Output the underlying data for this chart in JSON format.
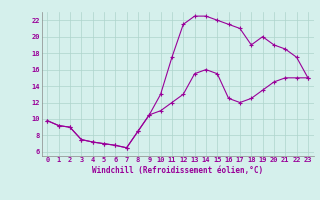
{
  "xlabel": "Windchill (Refroidissement éolien,°C)",
  "background_color": "#d5f0ec",
  "grid_color": "#aed4cc",
  "line_color": "#990099",
  "xlim": [
    -0.5,
    23.5
  ],
  "ylim": [
    5.5,
    23
  ],
  "xticks": [
    0,
    1,
    2,
    3,
    4,
    5,
    6,
    7,
    8,
    9,
    10,
    11,
    12,
    13,
    14,
    15,
    16,
    17,
    18,
    19,
    20,
    21,
    22,
    23
  ],
  "yticks": [
    6,
    8,
    10,
    12,
    14,
    16,
    18,
    20,
    22
  ],
  "line1_x": [
    0,
    1,
    2,
    3,
    4,
    5,
    6,
    7,
    8,
    9,
    10,
    11,
    12,
    13,
    14,
    15,
    16,
    17,
    18,
    19,
    20,
    21,
    22,
    23
  ],
  "line1_y": [
    9.8,
    9.2,
    9.0,
    7.5,
    7.2,
    7.0,
    6.8,
    6.5,
    8.5,
    10.5,
    13.0,
    17.5,
    21.5,
    22.5,
    22.5,
    22.0,
    21.5,
    21.0,
    19.0,
    20.0,
    19.0,
    18.5,
    17.5,
    15.0
  ],
  "line2_x": [
    0,
    1,
    2,
    3,
    4,
    5,
    6,
    7,
    8,
    9,
    10,
    11,
    12,
    13,
    14,
    15,
    16,
    17,
    18,
    19,
    20,
    21,
    22,
    23
  ],
  "line2_y": [
    9.8,
    9.2,
    9.0,
    7.5,
    7.2,
    7.0,
    6.8,
    6.5,
    8.5,
    10.5,
    11.0,
    12.0,
    13.0,
    15.5,
    16.0,
    15.5,
    12.5,
    12.0,
    12.5,
    13.5,
    14.5,
    15.0,
    15.0,
    15.0
  ],
  "tick_fontsize": 5.0,
  "xlabel_fontsize": 5.5,
  "marker_size": 3.0,
  "linewidth": 0.8
}
